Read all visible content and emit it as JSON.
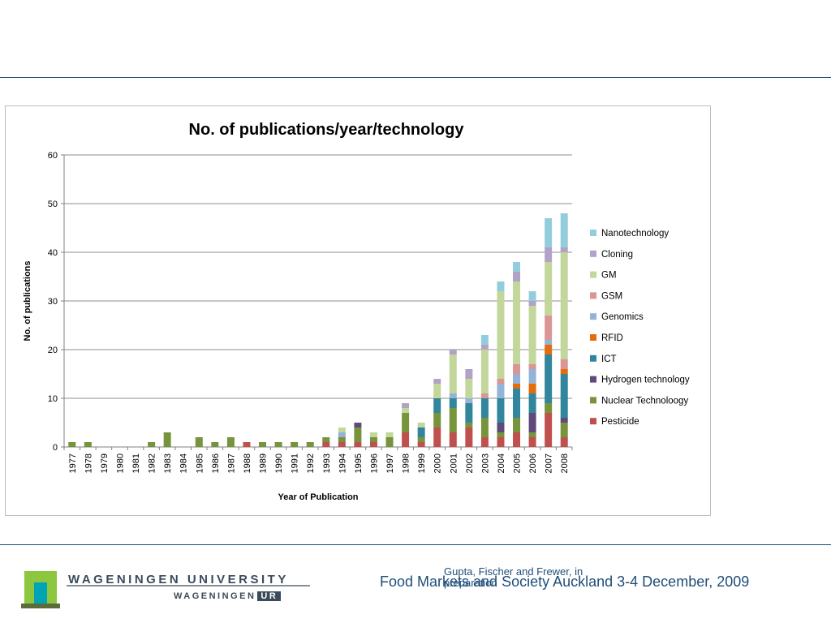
{
  "footer": {
    "university": "WAGENINGEN UNIVERSITY",
    "logo_sub": "WAGENINGEN",
    "logo_ur": "UR",
    "citation": "Gupta, Fischer and Frewer, in preparation",
    "event": "Food Markets and Society Auckland 3-4 December, 2009"
  },
  "colors": {
    "rule": "#1f4e79",
    "Nanotechnology": "#93cddd",
    "Cloning": "#b3a2c7",
    "GM": "#c3d69b",
    "GSM": "#d99694",
    "Genomics": "#95b3d7",
    "RFID": "#e46c0a",
    "ICT": "#31859c",
    "Hydrogen technology": "#604a7b",
    "Nuclear Technoloogy": "#77933c",
    "Pesticide": "#c0504d"
  },
  "chart_data": {
    "type": "bar",
    "stacked": true,
    "title": "No. of publications/year/technology",
    "xlabel": "Year of Publication",
    "ylabel": "No. of publications",
    "ylim": [
      0,
      60
    ],
    "yticks": [
      0,
      10,
      20,
      30,
      40,
      50,
      60
    ],
    "grid": true,
    "legend_position": "right",
    "categories": [
      "1977",
      "1978",
      "1979",
      "1980",
      "1981",
      "1982",
      "1983",
      "1984",
      "1985",
      "1986",
      "1987",
      "1988",
      "1989",
      "1990",
      "1991",
      "1992",
      "1993",
      "1994",
      "1995",
      "1996",
      "1997",
      "1998",
      "1999",
      "2000",
      "2001",
      "2002",
      "2003",
      "2004",
      "2005",
      "2006",
      "2007",
      "2008"
    ],
    "series": [
      {
        "name": "Pesticide",
        "values": [
          0,
          0,
          0,
          0,
          0,
          0,
          0,
          0,
          0,
          0,
          0,
          1,
          0,
          0,
          0,
          0,
          1,
          1,
          1,
          1,
          0,
          3,
          1,
          4,
          3,
          4,
          2,
          2,
          3,
          2,
          7,
          2
        ]
      },
      {
        "name": "Nuclear Technoloogy",
        "values": [
          1,
          1,
          0,
          0,
          0,
          1,
          3,
          0,
          2,
          1,
          2,
          0,
          1,
          1,
          1,
          1,
          1,
          1,
          3,
          1,
          2,
          4,
          1,
          3,
          5,
          1,
          4,
          1,
          3,
          1,
          2,
          3
        ]
      },
      {
        "name": "Hydrogen technology",
        "values": [
          0,
          0,
          0,
          0,
          0,
          0,
          0,
          0,
          0,
          0,
          0,
          0,
          0,
          0,
          0,
          0,
          0,
          0,
          1,
          0,
          0,
          0,
          0,
          0,
          0,
          0,
          0,
          2,
          0,
          4,
          0,
          1
        ]
      },
      {
        "name": "ICT",
        "values": [
          0,
          0,
          0,
          0,
          0,
          0,
          0,
          0,
          0,
          0,
          0,
          0,
          0,
          0,
          0,
          0,
          0,
          0,
          0,
          0,
          0,
          0,
          2,
          3,
          2,
          4,
          4,
          5,
          6,
          4,
          10,
          9
        ]
      },
      {
        "name": "RFID",
        "values": [
          0,
          0,
          0,
          0,
          0,
          0,
          0,
          0,
          0,
          0,
          0,
          0,
          0,
          0,
          0,
          0,
          0,
          0,
          0,
          0,
          0,
          0,
          0,
          0,
          0,
          0,
          0,
          0,
          1,
          2,
          2,
          1
        ]
      },
      {
        "name": "Genomics",
        "values": [
          0,
          0,
          0,
          0,
          0,
          0,
          0,
          0,
          0,
          0,
          0,
          0,
          0,
          0,
          0,
          0,
          0,
          1,
          0,
          0,
          0,
          0,
          0,
          0,
          1,
          1,
          0,
          3,
          2,
          3,
          1,
          0
        ]
      },
      {
        "name": "GSM",
        "values": [
          0,
          0,
          0,
          0,
          0,
          0,
          0,
          0,
          0,
          0,
          0,
          0,
          0,
          0,
          0,
          0,
          0,
          0,
          0,
          0,
          0,
          0,
          0,
          0,
          0,
          0,
          1,
          1,
          2,
          1,
          5,
          2
        ]
      },
      {
        "name": "GM",
        "values": [
          0,
          0,
          0,
          0,
          0,
          0,
          0,
          0,
          0,
          0,
          0,
          0,
          0,
          0,
          0,
          0,
          0,
          1,
          0,
          1,
          1,
          1,
          1,
          3,
          8,
          4,
          9,
          18,
          17,
          12,
          11,
          22
        ]
      },
      {
        "name": "Cloning",
        "values": [
          0,
          0,
          0,
          0,
          0,
          0,
          0,
          0,
          0,
          0,
          0,
          0,
          0,
          0,
          0,
          0,
          0,
          0,
          0,
          0,
          0,
          1,
          0,
          1,
          1,
          2,
          1,
          0,
          2,
          1,
          3,
          1
        ]
      },
      {
        "name": "Nanotechnology",
        "values": [
          0,
          0,
          0,
          0,
          0,
          0,
          0,
          0,
          0,
          0,
          0,
          0,
          0,
          0,
          0,
          0,
          0,
          0,
          0,
          0,
          0,
          0,
          0,
          0,
          0,
          0,
          2,
          2,
          2,
          2,
          6,
          7
        ]
      }
    ]
  }
}
